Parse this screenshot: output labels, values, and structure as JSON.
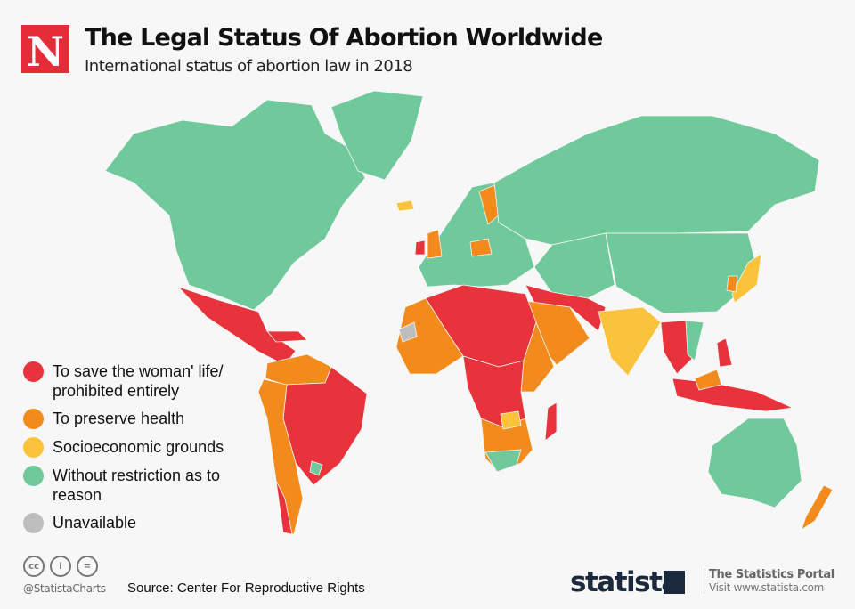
{
  "header": {
    "logo_letter": "N",
    "title": "The Legal Status Of Abortion Worldwide",
    "subtitle": "International status of abortion law in 2018"
  },
  "colors": {
    "life": "#e8333c",
    "health": "#f28b1c",
    "socio": "#fbc33b",
    "free": "#70c99b",
    "na": "#bdbdbd",
    "brand_red": "#e52d3a"
  },
  "legend": [
    {
      "key": "life",
      "label": "To save the woman' life/ prohibited entirely"
    },
    {
      "key": "health",
      "label": "To preserve health"
    },
    {
      "key": "socio",
      "label": "Socioeconomic grounds"
    },
    {
      "key": "free",
      "label": "Without restriction as to reason"
    },
    {
      "key": "na",
      "label": "Unavailable"
    }
  ],
  "footer": {
    "license_icons": [
      "cc-icon",
      "attribution-icon",
      "no-derivatives-icon"
    ],
    "handle": "@StatistaCharts",
    "source": "Source: Center For Reproductive Rights",
    "brand": "statista",
    "portal_title": "The Statistics Portal",
    "portal_url": "Visit www.statista.com"
  }
}
